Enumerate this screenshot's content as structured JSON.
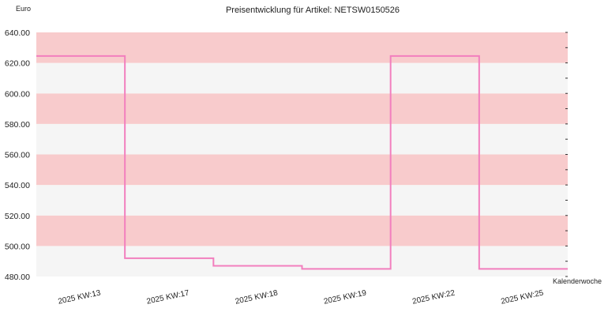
{
  "chart_data": {
    "type": "line",
    "title": "Preisentwicklung für Artikel: NETSW0150526",
    "ylabel": "Euro",
    "xlabel": "Kalenderwoche",
    "ylim": [
      480,
      640
    ],
    "yticks": [
      "480.00",
      "500.00",
      "520.00",
      "540.00",
      "560.00",
      "580.00",
      "600.00",
      "620.00",
      "640.00"
    ],
    "categories": [
      "2025 KW:13",
      "2025 KW:17",
      "2025 KW:18",
      "2025 KW:19",
      "2025 KW:22",
      "2025 KW:25"
    ],
    "step": true,
    "grid": true,
    "band_colors": [
      "#f5f5f5",
      "#f8cbcc"
    ],
    "series": [
      {
        "values": [
          624.5,
          492,
          487,
          485,
          624.5,
          485
        ],
        "color": "#f27fbe"
      }
    ]
  }
}
